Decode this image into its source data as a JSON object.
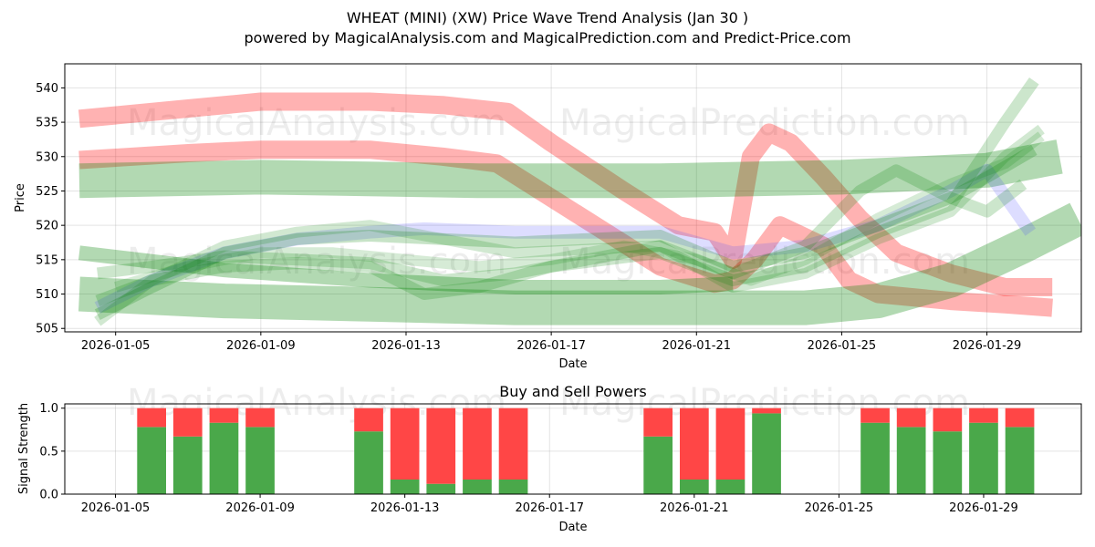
{
  "chart_data": [
    {
      "type": "line",
      "title": "WHEAT (MINI) (XW) Price Wave Trend Analysis (Jan 30 )",
      "subtitle": "powered by MagicalAnalysis.com and MagicalPrediction.com and Predict-Price.com",
      "xlabel": "Date",
      "ylabel": "Price",
      "x_tick_labels": [
        "2026-01-05",
        "2026-01-09",
        "2026-01-13",
        "2026-01-17",
        "2026-01-21",
        "2026-01-25",
        "2026-01-29"
      ],
      "x_tick_days": [
        5,
        9,
        13,
        17,
        21,
        25,
        29
      ],
      "y_ticks": [
        505,
        510,
        515,
        520,
        525,
        530,
        535,
        540
      ],
      "xlim": [
        3.6,
        31.6
      ],
      "ylim": [
        504.5,
        543.5
      ],
      "grid": true,
      "watermarks": [
        "MagicalAnalysis.com",
        "MagicalPrediction.com",
        "MagicalAnalysis.com",
        "MagicalPrediction.com"
      ],
      "series": [
        {
          "name": "upper band",
          "color": "#ff0000",
          "alpha": 0.3,
          "width": 20,
          "points": [
            [
              4.0,
              535.5
            ],
            [
              7.0,
              537.0
            ],
            [
              9.0,
              538.0
            ],
            [
              12.0,
              538.0
            ],
            [
              14.0,
              537.5
            ],
            [
              15.8,
              536.5
            ],
            [
              17.0,
              532.0
            ],
            [
              19.0,
              525.0
            ],
            [
              20.5,
              520.0
            ],
            [
              21.5,
              519.0
            ],
            [
              22.0,
              515.0
            ],
            [
              22.5,
              530.0
            ],
            [
              23.0,
              533.5
            ],
            [
              23.6,
              532.0
            ],
            [
              24.5,
              527.0
            ],
            [
              25.5,
              521.0
            ],
            [
              26.5,
              516.0
            ],
            [
              28.0,
              513.0
            ],
            [
              29.5,
              511.0
            ],
            [
              30.8,
              511.0
            ]
          ]
        },
        {
          "name": "lower band",
          "color": "#ff0000",
          "alpha": 0.3,
          "width": 20,
          "points": [
            [
              4.0,
              529.5
            ],
            [
              7.0,
              530.5
            ],
            [
              9.0,
              531.0
            ],
            [
              12.0,
              531.0
            ],
            [
              14.0,
              530.0
            ],
            [
              15.5,
              529.0
            ],
            [
              17.0,
              524.0
            ],
            [
              18.5,
              519.0
            ],
            [
              20.0,
              514.0
            ],
            [
              21.5,
              511.5
            ],
            [
              22.0,
              512.0
            ],
            [
              22.6,
              515.0
            ],
            [
              23.3,
              520.0
            ],
            [
              24.5,
              517.0
            ],
            [
              25.2,
              512.0
            ],
            [
              26.0,
              510.0
            ],
            [
              28.0,
              509.0
            ],
            [
              29.5,
              508.5
            ],
            [
              30.8,
              508.0
            ]
          ]
        },
        {
          "name": "green wide band",
          "color": "#008000",
          "alpha": 0.3,
          "width": 38,
          "points": [
            [
              4.0,
              526.5
            ],
            [
              9.0,
              527.0
            ],
            [
              15.0,
              526.5
            ],
            [
              20.0,
              526.5
            ],
            [
              25.0,
              527.0
            ],
            [
              29.0,
              528.0
            ],
            [
              31.0,
              530.0
            ]
          ]
        },
        {
          "name": "green lower band",
          "color": "#008000",
          "alpha": 0.3,
          "width": 38,
          "points": [
            [
              4.0,
              510.0
            ],
            [
              8.0,
              509.0
            ],
            [
              12.0,
              508.5
            ],
            [
              16.0,
              508.0
            ],
            [
              20.0,
              508.0
            ],
            [
              24.0,
              508.0
            ],
            [
              26.0,
              509.0
            ],
            [
              28.0,
              512.0
            ],
            [
              30.0,
              517.0
            ],
            [
              31.5,
              521.0
            ]
          ]
        },
        {
          "name": "green diagonal",
          "color": "#008000",
          "alpha": 0.3,
          "width": 16,
          "points": [
            [
              4.0,
              516.0
            ],
            [
              8.0,
              513.5
            ],
            [
              12.0,
              512.0
            ],
            [
              16.0,
              511.0
            ],
            [
              20.0,
              511.0
            ],
            [
              22.0,
              511.5
            ]
          ]
        },
        {
          "name": "blue wave",
          "color": "#4040ff",
          "alpha": 0.18,
          "width": 14,
          "points": [
            [
              4.5,
              508.0
            ],
            [
              6.0,
              512.0
            ],
            [
              8.0,
              516.0
            ],
            [
              10.0,
              518.0
            ],
            [
              12.0,
              519.0
            ],
            [
              13.5,
              519.5
            ],
            [
              16.0,
              519.0
            ],
            [
              18.0,
              519.0
            ],
            [
              20.0,
              519.0
            ],
            [
              22.0,
              516.0
            ],
            [
              24.0,
              517.0
            ],
            [
              26.0,
              520.0
            ],
            [
              28.0,
              525.0
            ],
            [
              29.0,
              528.0
            ],
            [
              30.2,
              519.0
            ]
          ]
        },
        {
          "name": "green wave a",
          "color": "#008000",
          "alpha": 0.22,
          "width": 13,
          "points": [
            [
              4.5,
              507.0
            ],
            [
              6.0,
              511.0
            ],
            [
              8.0,
              516.0
            ],
            [
              10.0,
              518.0
            ],
            [
              12.0,
              518.5
            ],
            [
              14.0,
              518.0
            ],
            [
              16.0,
              517.5
            ],
            [
              18.0,
              518.0
            ],
            [
              20.0,
              518.5
            ],
            [
              22.0,
              514.0
            ],
            [
              24.0,
              516.0
            ],
            [
              26.0,
              520.0
            ],
            [
              28.0,
              524.0
            ],
            [
              29.0,
              527.0
            ],
            [
              30.3,
              531.0
            ]
          ]
        },
        {
          "name": "green wave b",
          "color": "#008000",
          "alpha": 0.2,
          "width": 13,
          "points": [
            [
              4.5,
              509.0
            ],
            [
              6.0,
              512.0
            ],
            [
              8.0,
              514.0
            ],
            [
              10.0,
              514.5
            ],
            [
              12.0,
              514.0
            ],
            [
              13.5,
              510.0
            ],
            [
              15.0,
              511.0
            ],
            [
              17.0,
              514.0
            ],
            [
              20.0,
              516.0
            ],
            [
              22.0,
              512.0
            ],
            [
              24.0,
              514.0
            ],
            [
              26.0,
              519.0
            ],
            [
              28.0,
              523.0
            ],
            [
              29.5,
              535.0
            ],
            [
              30.3,
              541.0
            ]
          ]
        },
        {
          "name": "green wave c",
          "color": "#008000",
          "alpha": 0.2,
          "width": 13,
          "points": [
            [
              4.5,
              513.0
            ],
            [
              6.0,
              514.0
            ],
            [
              8.0,
              515.5
            ],
            [
              10.0,
              515.0
            ],
            [
              12.0,
              514.5
            ],
            [
              14.0,
              512.0
            ],
            [
              16.0,
              513.0
            ],
            [
              18.0,
              515.0
            ],
            [
              20.0,
              517.0
            ],
            [
              22.0,
              513.0
            ],
            [
              24.0,
              517.0
            ],
            [
              25.5,
              525.0
            ],
            [
              26.5,
              528.0
            ],
            [
              28.0,
              524.0
            ],
            [
              29.0,
              522.0
            ],
            [
              30.0,
              526.0
            ]
          ]
        },
        {
          "name": "green wave d",
          "color": "#008000",
          "alpha": 0.18,
          "width": 12,
          "points": [
            [
              4.5,
              506.0
            ],
            [
              6.0,
              512.0
            ],
            [
              8.0,
              517.0
            ],
            [
              10.0,
              519.0
            ],
            [
              12.0,
              520.0
            ],
            [
              14.0,
              518.0
            ],
            [
              16.0,
              516.0
            ],
            [
              18.0,
              516.5
            ],
            [
              20.0,
              517.0
            ],
            [
              22.0,
              511.0
            ],
            [
              24.0,
              513.0
            ],
            [
              26.0,
              518.0
            ],
            [
              28.0,
              522.0
            ],
            [
              29.5,
              530.0
            ],
            [
              30.5,
              534.0
            ]
          ]
        },
        {
          "name": "green wave e",
          "color": "#008000",
          "alpha": 0.16,
          "width": 12,
          "points": [
            [
              5.0,
              511.0
            ],
            [
              7.0,
              514.0
            ],
            [
              9.0,
              516.0
            ],
            [
              11.0,
              516.0
            ],
            [
              13.0,
              515.0
            ],
            [
              15.0,
              514.0
            ],
            [
              17.0,
              515.0
            ],
            [
              19.0,
              517.0
            ],
            [
              21.0,
              515.0
            ],
            [
              22.5,
              512.0
            ],
            [
              24.0,
              515.0
            ],
            [
              26.0,
              521.0
            ],
            [
              28.0,
              526.0
            ],
            [
              29.5,
              529.0
            ],
            [
              30.5,
              533.0
            ]
          ]
        }
      ]
    },
    {
      "type": "bar",
      "title": "Buy and Sell Powers",
      "xlabel": "Date",
      "ylabel": "Signal Strength",
      "x_tick_labels": [
        "2026-01-05",
        "2026-01-09",
        "2026-01-13",
        "2026-01-17",
        "2026-01-21",
        "2026-01-25",
        "2026-01-29"
      ],
      "x_tick_days": [
        5,
        9,
        13,
        17,
        21,
        25,
        29
      ],
      "y_tick_labels": [
        "0.0",
        "0.5",
        "1.0"
      ],
      "y_ticks": [
        0.0,
        0.5,
        1.0
      ],
      "xlim": [
        3.6,
        31.7
      ],
      "ylim": [
        0,
        1.05
      ],
      "grid": true,
      "buy_color": "#4aa84a",
      "sell_color": "#ff4646",
      "watermarks": [
        "MagicalAnalysis.com",
        "MagicalPrediction.com"
      ],
      "bars": [
        {
          "day": 6,
          "buy": 0.78
        },
        {
          "day": 7,
          "buy": 0.67
        },
        {
          "day": 8,
          "buy": 0.83
        },
        {
          "day": 9,
          "buy": 0.78
        },
        {
          "day": 12,
          "buy": 0.73
        },
        {
          "day": 13,
          "buy": 0.17
        },
        {
          "day": 14,
          "buy": 0.12
        },
        {
          "day": 15,
          "buy": 0.17
        },
        {
          "day": 16,
          "buy": 0.17
        },
        {
          "day": 20,
          "buy": 0.67
        },
        {
          "day": 21,
          "buy": 0.17
        },
        {
          "day": 22,
          "buy": 0.17
        },
        {
          "day": 23,
          "buy": 0.94
        },
        {
          "day": 26,
          "buy": 0.83
        },
        {
          "day": 27,
          "buy": 0.78
        },
        {
          "day": 28,
          "buy": 0.73
        },
        {
          "day": 29,
          "buy": 0.83
        },
        {
          "day": 30,
          "buy": 0.78
        }
      ]
    }
  ]
}
